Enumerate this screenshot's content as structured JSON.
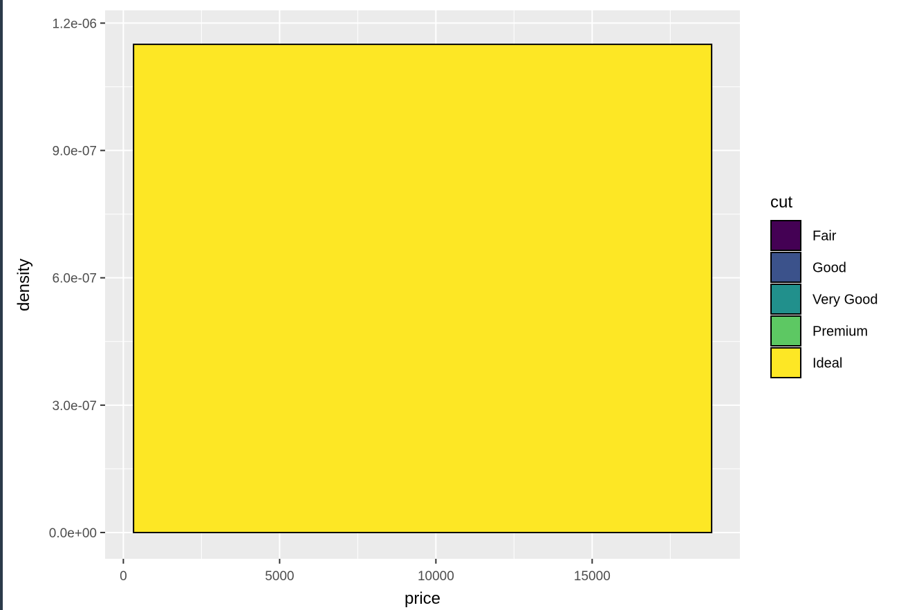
{
  "chart_data": {
    "type": "area",
    "title": "",
    "xlabel": "price",
    "ylabel": "density",
    "xlim": [
      -584,
      19727
    ],
    "ylim": [
      -6.2e-08,
      1.23e-06
    ],
    "x_ticks": [
      {
        "value": 0,
        "label": "0"
      },
      {
        "value": 5000,
        "label": "5000"
      },
      {
        "value": 10000,
        "label": "10000"
      },
      {
        "value": 15000,
        "label": "15000"
      }
    ],
    "y_ticks": [
      {
        "value": 0,
        "label": "0.0e+00"
      },
      {
        "value": 3e-07,
        "label": "3.0e-07"
      },
      {
        "value": 6e-07,
        "label": "6.0e-07"
      },
      {
        "value": 9e-07,
        "label": "9.0e-07"
      },
      {
        "value": 1.2e-06,
        "label": "1.2e-06"
      }
    ],
    "grid": true,
    "legend": {
      "title": "cut",
      "placement": "right",
      "entries": [
        {
          "name": "Fair",
          "color": "#440154"
        },
        {
          "name": "Good",
          "color": "#3B528B"
        },
        {
          "name": "Very Good",
          "color": "#21908C"
        },
        {
          "name": "Premium",
          "color": "#5DC863"
        },
        {
          "name": "Ideal",
          "color": "#FDE725"
        }
      ]
    },
    "series": [
      {
        "name": "Ideal",
        "color": "#FDE725",
        "x": [
          326,
          326,
          18823,
          18823
        ],
        "y": [
          0,
          1.15e-06,
          1.15e-06,
          0
        ]
      }
    ]
  }
}
